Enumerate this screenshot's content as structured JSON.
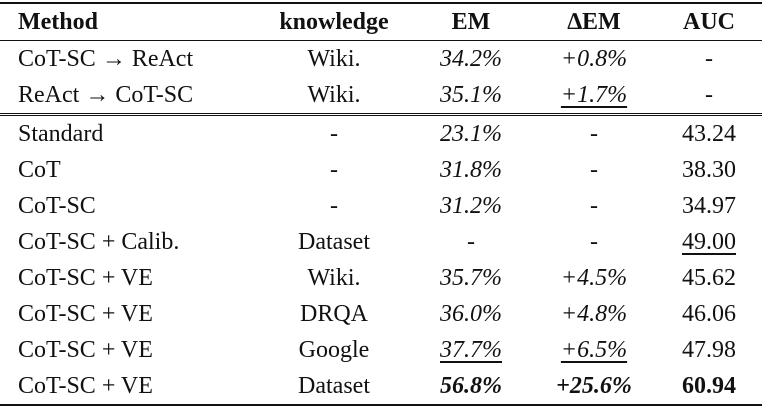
{
  "table": {
    "header": [
      "Method",
      "knowledge",
      "EM",
      "∆EM",
      "AUC"
    ],
    "rows": [
      [
        "CoT-SC → ReAct",
        "Wiki.",
        "34.2%",
        "+0.8%",
        "-"
      ],
      [
        "ReAct → CoT-SC",
        "Wiki.",
        "35.1%",
        "+1.7%",
        "-"
      ],
      [
        "Standard",
        "-",
        "23.1%",
        "-",
        "43.24"
      ],
      [
        "CoT",
        "-",
        "31.8%",
        "-",
        "38.30"
      ],
      [
        "CoT-SC",
        "-",
        "31.2%",
        "-",
        "34.97"
      ],
      [
        "CoT-SC + Calib.",
        "Dataset",
        "-",
        "-",
        "49.00"
      ],
      [
        "CoT-SC + VE",
        "Wiki.",
        "35.7%",
        "+4.5%",
        "45.62"
      ],
      [
        "CoT-SC + VE",
        "DRQA",
        "36.0%",
        "+4.8%",
        "46.06"
      ],
      [
        "CoT-SC + VE",
        "Google",
        "37.7%",
        "+6.5%",
        "47.98"
      ],
      [
        "CoT-SC + VE",
        "Dataset",
        "56.8%",
        "+25.6%",
        "60.94"
      ]
    ]
  }
}
